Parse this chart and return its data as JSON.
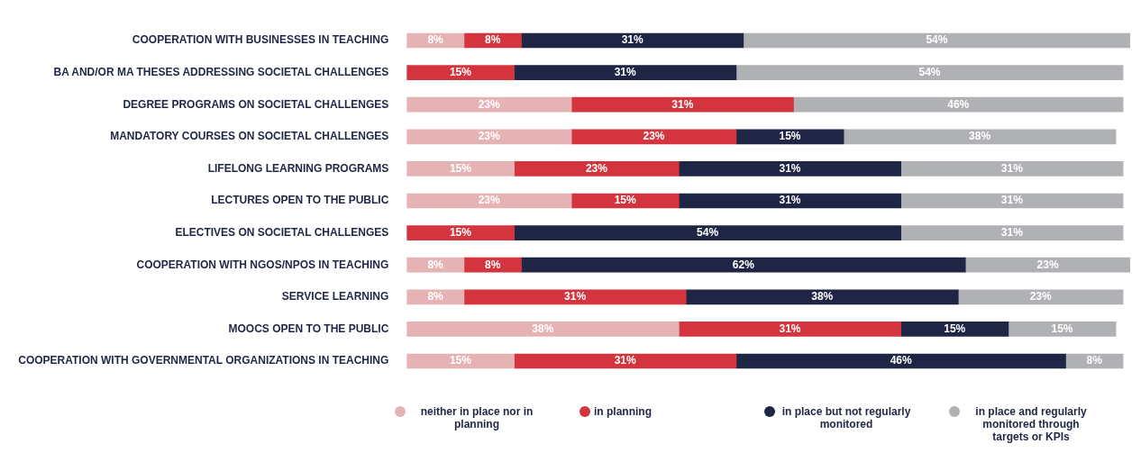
{
  "chart_data": {
    "type": "bar",
    "orientation": "horizontal",
    "stacked": true,
    "legend": "bottom",
    "grid": false,
    "categories": [
      "COOPERATION WITH BUSINESSES IN TEACHING",
      "BA AND/OR MA THESES ADDRESSING SOCIETAL CHALLENGES",
      "DEGREE PROGRAMS ON SOCIETAL CHALLENGES",
      "MANDATORY COURSES ON SOCIETAL CHALLENGES",
      "LIFELONG LEARNING PROGRAMS",
      "LECTURES OPEN TO THE PUBLIC",
      "ELECTIVES ON SOCIETAL CHALLENGES",
      "COOPERATION WITH NGOS/NPOS IN TEACHING",
      "SERVICE LEARNING",
      "MOOCS OPEN TO THE PUBLIC",
      "COOPERATION WITH GOVERNMENTAL ORGANIZATIONS IN TEACHING"
    ],
    "series": [
      {
        "name": "neither in place nor in planning",
        "color": "#e6b3b5",
        "values": [
          8,
          null,
          23,
          23,
          15,
          23,
          null,
          8,
          8,
          38,
          15
        ],
        "value_labels": [
          "8%",
          null,
          "23%",
          "23%",
          "15%",
          "23%",
          null,
          "8%",
          "8%",
          "38%",
          "15%"
        ]
      },
      {
        "name": "in planning",
        "color": "#d4343e",
        "values": [
          8,
          15,
          31,
          23,
          23,
          15,
          15,
          8,
          31,
          31,
          31
        ],
        "value_labels": [
          "8%",
          "15%",
          "31%",
          "23%",
          "23%",
          "15%",
          "15%",
          "8%",
          "31%",
          "31%",
          "31%"
        ]
      },
      {
        "name": "in place but not regularly monitored",
        "color": "#1f2544",
        "values": [
          31,
          31,
          null,
          15,
          31,
          31,
          54,
          62,
          38,
          15,
          46
        ],
        "value_labels": [
          "31%",
          "31%",
          null,
          "15%",
          "31%",
          "31%",
          "54%",
          "62%",
          "38%",
          "15%",
          "46%"
        ]
      },
      {
        "name": "in place and regularly monitored through targets or KPIs",
        "color": "#b0b1b5",
        "values": [
          54,
          54,
          46,
          38,
          31,
          31,
          31,
          23,
          23,
          15,
          8
        ],
        "value_labels": [
          "54%",
          "54%",
          "46%",
          "38%",
          "31%",
          "31%",
          "31%",
          "23%",
          "23%",
          "15%",
          "8%"
        ]
      }
    ]
  }
}
